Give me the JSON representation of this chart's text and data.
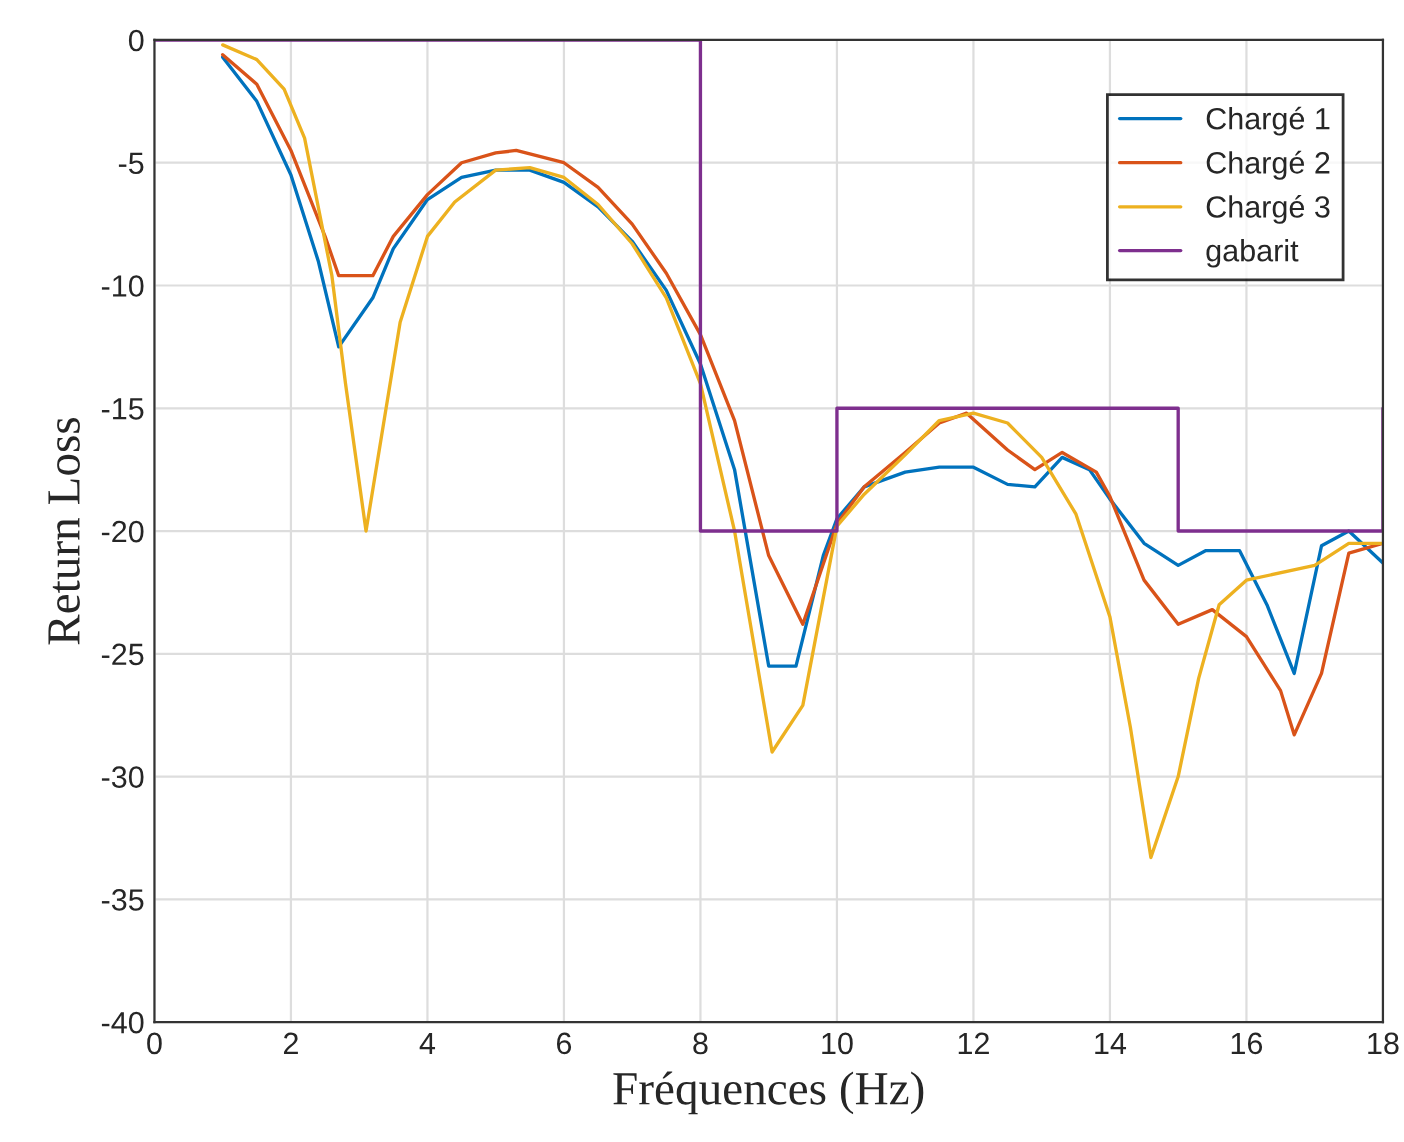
{
  "chart_data": {
    "type": "line",
    "xlabel": "Fréquences (Hz)",
    "ylabel": "Return Loss",
    "xlim": [
      0,
      18
    ],
    "ylim": [
      -40,
      0
    ],
    "xticks": [
      0,
      2,
      4,
      6,
      8,
      10,
      12,
      14,
      16,
      18
    ],
    "yticks": [
      -40,
      -35,
      -30,
      -25,
      -20,
      -15,
      -10,
      -5,
      0
    ],
    "grid": true,
    "legend": "top right",
    "marker": "none",
    "line_style": "solid",
    "series": [
      {
        "name": "Chargé 1",
        "color": "#0072bd",
        "x": [
          1,
          1.5,
          2,
          2.4,
          2.7,
          3.2,
          3.5,
          4,
          4.5,
          5,
          5.5,
          6,
          6.5,
          7,
          7.5,
          8,
          8.5,
          9,
          9.4,
          9.8,
          10,
          10.4,
          11,
          11.5,
          12,
          12.5,
          12.9,
          13.3,
          13.7,
          14,
          14.5,
          15,
          15.4,
          15.9,
          16.3,
          16.7,
          17.1,
          17.5,
          18
        ],
        "values": [
          -0.7,
          -2.5,
          -5.5,
          -9,
          -12.5,
          -10.5,
          -8.5,
          -6.5,
          -5.6,
          -5.3,
          -5.3,
          -5.8,
          -6.8,
          -8.2,
          -10.2,
          -13.2,
          -17.5,
          -25.5,
          -25.5,
          -21,
          -19.5,
          -18.2,
          -17.6,
          -17.4,
          -17.4,
          -18.1,
          -18.2,
          -17,
          -17.5,
          -18.7,
          -20.5,
          -21.4,
          -20.8,
          -20.8,
          -23,
          -25.8,
          -20.6,
          -20,
          -21.3
        ]
      },
      {
        "name": "Chargé 2",
        "color": "#d95319",
        "x": [
          1,
          1.5,
          2,
          2.5,
          2.7,
          3.2,
          3.5,
          4,
          4.5,
          5,
          5.3,
          6,
          6.5,
          7,
          7.5,
          8,
          8.5,
          9,
          9.5,
          10,
          10.4,
          11,
          11.5,
          11.9,
          12.5,
          12.9,
          13.3,
          13.8,
          14,
          14.5,
          15,
          15.5,
          16,
          16.5,
          16.7,
          17.1,
          17.5,
          18
        ],
        "values": [
          -0.6,
          -1.8,
          -4.5,
          -8,
          -9.6,
          -9.6,
          -8,
          -6.3,
          -5,
          -4.6,
          -4.5,
          -5,
          -6,
          -7.5,
          -9.5,
          -12,
          -15.5,
          -21,
          -23.8,
          -19.7,
          -18.2,
          -16.8,
          -15.6,
          -15.2,
          -16.7,
          -17.5,
          -16.8,
          -17.6,
          -18.6,
          -22,
          -23.8,
          -23.2,
          -24.3,
          -26.5,
          -28.3,
          -25.8,
          -20.9,
          -20.5
        ]
      },
      {
        "name": "Chargé 3",
        "color": "#edb120",
        "x": [
          1,
          1.5,
          1.9,
          2.2,
          2.6,
          2.8,
          3.1,
          3.6,
          4,
          4.4,
          5,
          5.5,
          6,
          6.5,
          7,
          7.5,
          8,
          8.5,
          9.05,
          9.5,
          10,
          10.4,
          11,
          11.5,
          12,
          12.5,
          13,
          13.5,
          14,
          14.3,
          14.6,
          15,
          15.3,
          15.6,
          16,
          17,
          17.5,
          18
        ],
        "values": [
          -0.2,
          -0.8,
          -2,
          -4,
          -9.6,
          -14,
          -20,
          -11.5,
          -8,
          -6.6,
          -5.3,
          -5.2,
          -5.6,
          -6.7,
          -8.3,
          -10.5,
          -14,
          -20,
          -29,
          -27.1,
          -19.8,
          -18.5,
          -16.9,
          -15.5,
          -15.2,
          -15.6,
          -17,
          -19.3,
          -23.5,
          -28,
          -33.3,
          -30,
          -26,
          -23,
          -22,
          -21.4,
          -20.5,
          -20.5
        ]
      },
      {
        "name": "gabarit",
        "color": "#7e2f8e",
        "x": [
          0,
          8,
          8,
          10,
          10,
          15,
          15,
          18,
          18
        ],
        "values": [
          0,
          0,
          -20,
          -20,
          -15,
          -15,
          -20,
          -20,
          -15
        ]
      }
    ]
  }
}
